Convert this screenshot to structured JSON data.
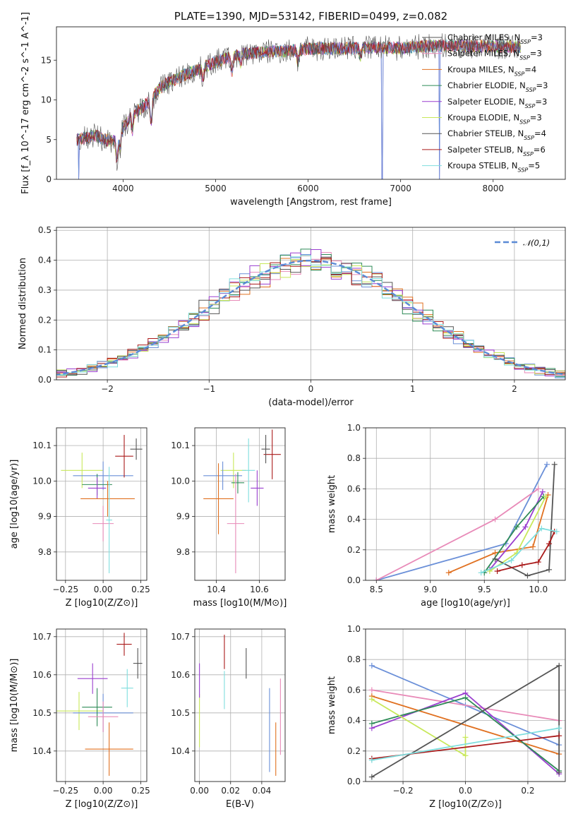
{
  "colors": [
    "#6a8fd8",
    "#e07020",
    "#2e8b57",
    "#9a3fcf",
    "#c8e85a",
    "#555555",
    "#aa1a1a",
    "#e88ab8",
    "#7fdede"
  ],
  "models": [
    {
      "name": "Chabrier MILES",
      "nssp": "3",
      "c": 5
    },
    {
      "name": "Salpeter MILES",
      "nssp": "3",
      "c": 7
    },
    {
      "name": "Kroupa MILES",
      "nssp": "4",
      "c": 1
    },
    {
      "name": "Chabrier ELODIE",
      "nssp": "3",
      "c": 2
    },
    {
      "name": "Salpeter ELODIE",
      "nssp": "3",
      "c": 3
    },
    {
      "name": "Kroupa ELODIE",
      "nssp": "3",
      "c": 4
    },
    {
      "name": "Chabrier STELIB",
      "nssp": "4",
      "c": 5
    },
    {
      "name": "Salpeter STELIB",
      "nssp": "6",
      "c": 6
    },
    {
      "name": "Kroupa STELIB",
      "nssp": "5",
      "c": 8
    }
  ],
  "chart_data": [
    {
      "id": "spectrum",
      "type": "line",
      "title": "PLATE=1390, MJD=53142, FIBERID=0499, z=0.082",
      "xlabel": "wavelength [Angstrom, rest frame]",
      "ylabel": "Flux [f_λ 10^-17 erg cm^-2 s^-1 A^-1]",
      "xlim": [
        3280,
        8780
      ],
      "ylim": [
        0,
        19.2
      ],
      "xticks": [
        4000,
        5000,
        6000,
        7000,
        8000
      ],
      "yticks": [
        0,
        5,
        10,
        15
      ],
      "continuum": [
        [
          3500,
          5.0
        ],
        [
          3700,
          5.5
        ],
        [
          3800,
          5.0
        ],
        [
          3900,
          4.8
        ],
        [
          4000,
          6.5
        ],
        [
          4100,
          8.2
        ],
        [
          4200,
          9.0
        ],
        [
          4300,
          10.0
        ],
        [
          4400,
          11.5
        ],
        [
          4500,
          12.3
        ],
        [
          4700,
          13.3
        ],
        [
          4900,
          14.3
        ],
        [
          5100,
          15.2
        ],
        [
          5300,
          15.8
        ],
        [
          5500,
          16.0
        ],
        [
          5800,
          16.2
        ],
        [
          6100,
          16.5
        ],
        [
          6400,
          16.5
        ],
        [
          6700,
          16.6
        ],
        [
          7000,
          16.5
        ],
        [
          7300,
          16.8
        ],
        [
          7600,
          16.8
        ],
        [
          8000,
          16.7
        ],
        [
          8300,
          16.7
        ]
      ],
      "features": [
        [
          3934,
          -3.0
        ],
        [
          3969,
          -2.0
        ],
        [
          4102,
          -2.0
        ],
        [
          4305,
          -3.0
        ],
        [
          4861,
          -1.5
        ],
        [
          5176,
          -2.0
        ],
        [
          5270,
          -1.0
        ],
        [
          5890,
          -1.5
        ],
        [
          6563,
          -1.0
        ]
      ],
      "drops": [
        [
          3520,
          0.0
        ],
        [
          6800,
          0.0
        ],
        [
          7420,
          0.0
        ]
      ]
    },
    {
      "id": "residual-histogram",
      "type": "line",
      "xlabel": "(data-model)/error",
      "ylabel": "Normed distribution",
      "xlim": [
        -2.5,
        2.5
      ],
      "ylim": [
        0,
        0.51
      ],
      "xticks": [
        -2,
        -1,
        0,
        1,
        2
      ],
      "yticks": [
        0.0,
        0.1,
        0.2,
        0.3,
        0.4,
        0.5
      ],
      "legend": "𝒩(0,1)",
      "legend_position": "top-right",
      "bin_width": 0.1
    },
    {
      "id": "age-vs-metallicity",
      "type": "scatter",
      "xlabel": "Z [log10(Z/Z⊙)]",
      "ylabel": "age  [log10(age/yr)]",
      "xlim": [
        -0.31,
        0.29
      ],
      "ylim": [
        9.72,
        10.15
      ],
      "xticks": [
        -0.25,
        0.0,
        0.25
      ],
      "yticks": [
        9.8,
        9.9,
        10.0,
        10.1
      ],
      "points": [
        {
          "c": 4,
          "x": -0.14,
          "xerr": 0.14,
          "y": 10.03,
          "yerr": 0.05
        },
        {
          "c": 0,
          "x": 0.0,
          "xerr": 0.2,
          "y": 10.015,
          "yerr": 0.04
        },
        {
          "c": 2,
          "x": -0.04,
          "xerr": 0.1,
          "y": 9.99,
          "yerr": 0.03
        },
        {
          "c": 3,
          "x": -0.04,
          "xerr": 0.06,
          "y": 9.98,
          "yerr": 0.03
        },
        {
          "c": 1,
          "x": 0.03,
          "xerr": 0.18,
          "y": 9.95,
          "yerr": 0.05
        },
        {
          "c": 7,
          "x": 0.0,
          "xerr": 0.07,
          "y": 9.88,
          "yerr": 0.05
        },
        {
          "c": 6,
          "x": 0.14,
          "xerr": 0.06,
          "y": 10.07,
          "yerr": 0.06
        },
        {
          "c": 5,
          "x": 0.22,
          "xerr": 0.04,
          "y": 10.09,
          "yerr": 0.03
        },
        {
          "c": 8,
          "x": 0.04,
          "xerr": 0.02,
          "y": 9.89,
          "yerr": 0.15
        }
      ]
    },
    {
      "id": "age-vs-mass",
      "type": "scatter",
      "xlabel": "mass [log10(M/M⊙)]",
      "ylabel": "",
      "xlim": [
        10.3,
        10.72
      ],
      "ylim": [
        9.72,
        10.15
      ],
      "xticks": [
        10.4,
        10.6
      ],
      "yticks": [
        9.8,
        9.9,
        10.0,
        10.1
      ],
      "points": [
        {
          "c": 4,
          "x": 10.48,
          "xerr": 0.06,
          "y": 10.03,
          "yerr": 0.05
        },
        {
          "c": 0,
          "x": 10.43,
          "xerr": 0.09,
          "y": 10.015,
          "yerr": 0.04
        },
        {
          "c": 2,
          "x": 10.5,
          "xerr": 0.03,
          "y": 9.995,
          "yerr": 0.03
        },
        {
          "c": 3,
          "x": 10.59,
          "xerr": 0.03,
          "y": 9.98,
          "yerr": 0.05
        },
        {
          "c": 1,
          "x": 10.41,
          "xerr": 0.07,
          "y": 9.95,
          "yerr": 0.1
        },
        {
          "c": 7,
          "x": 10.49,
          "xerr": 0.04,
          "y": 9.88,
          "yerr": 0.14
        },
        {
          "c": 6,
          "x": 10.66,
          "xerr": 0.04,
          "y": 10.075,
          "yerr": 0.07
        },
        {
          "c": 5,
          "x": 10.63,
          "xerr": 0.02,
          "y": 10.09,
          "yerr": 0.04
        },
        {
          "c": 8,
          "x": 10.55,
          "xerr": 0.03,
          "y": 10.03,
          "yerr": 0.09
        }
      ]
    },
    {
      "id": "mass-weight-vs-age",
      "type": "line",
      "xlabel": "age  [log10(age/yr)]",
      "ylabel": "mass weight",
      "xlim": [
        8.4,
        10.25
      ],
      "ylim": [
        0,
        1.0
      ],
      "xticks": [
        8.5,
        9.0,
        9.5,
        10.0
      ],
      "yticks": [
        0.0,
        0.2,
        0.4,
        0.6,
        0.8,
        1.0
      ],
      "series": [
        {
          "c": 0,
          "x": [
            8.5,
            9.7,
            10.08
          ],
          "y": [
            0.0,
            0.24,
            0.76
          ]
        },
        {
          "c": 7,
          "x": [
            8.5,
            9.6,
            10.0
          ],
          "y": [
            0.0,
            0.4,
            0.6
          ]
        },
        {
          "c": 1,
          "x": [
            9.17,
            9.6,
            9.95,
            10.09
          ],
          "y": [
            0.05,
            0.18,
            0.22,
            0.56
          ]
        },
        {
          "c": 3,
          "x": [
            9.55,
            9.88,
            10.04
          ],
          "y": [
            0.07,
            0.35,
            0.58
          ]
        },
        {
          "c": 2,
          "x": [
            9.5,
            9.8,
            10.05
          ],
          "y": [
            0.05,
            0.35,
            0.55
          ]
        },
        {
          "c": 4,
          "x": [
            9.55,
            9.8,
            10.07
          ],
          "y": [
            0.06,
            0.18,
            0.55
          ]
        },
        {
          "c": 5,
          "x": [
            9.6,
            9.9,
            10.1,
            10.15
          ],
          "y": [
            0.14,
            0.03,
            0.07,
            0.76
          ]
        },
        {
          "c": 6,
          "x": [
            9.62,
            9.85,
            10.0,
            10.1,
            10.15
          ],
          "y": [
            0.06,
            0.1,
            0.12,
            0.24,
            0.32
          ]
        },
        {
          "c": 8,
          "x": [
            9.47,
            9.75,
            10.03,
            10.17
          ],
          "y": [
            0.05,
            0.13,
            0.34,
            0.32
          ]
        }
      ]
    },
    {
      "id": "mass-vs-metallicity",
      "type": "scatter",
      "xlabel": "Z [log10(Z/Z⊙)]",
      "ylabel": "mass [log10(M/M⊙)]",
      "xlim": [
        -0.31,
        0.29
      ],
      "ylim": [
        10.32,
        10.72
      ],
      "xticks": [
        -0.25,
        0.0,
        0.25
      ],
      "yticks": [
        10.4,
        10.5,
        10.6,
        10.7
      ],
      "points": [
        {
          "c": 4,
          "x": -0.16,
          "xerr": 0.16,
          "y": 10.505,
          "yerr": 0.05
        },
        {
          "c": 0,
          "x": 0.0,
          "xerr": 0.2,
          "y": 10.5,
          "yerr": 0.05
        },
        {
          "c": 2,
          "x": -0.04,
          "xerr": 0.1,
          "y": 10.515,
          "yerr": 0.05
        },
        {
          "c": 3,
          "x": -0.07,
          "xerr": 0.1,
          "y": 10.59,
          "yerr": 0.04
        },
        {
          "c": 1,
          "x": 0.04,
          "xerr": 0.16,
          "y": 10.405,
          "yerr": 0.07
        },
        {
          "c": 7,
          "x": 0.0,
          "xerr": 0.1,
          "y": 10.49,
          "yerr": 0.04
        },
        {
          "c": 6,
          "x": 0.14,
          "xerr": 0.05,
          "y": 10.68,
          "yerr": 0.03
        },
        {
          "c": 5,
          "x": 0.23,
          "xerr": 0.03,
          "y": 10.63,
          "yerr": 0.04
        },
        {
          "c": 8,
          "x": 0.16,
          "xerr": 0.04,
          "y": 10.565,
          "yerr": 0.05
        }
      ]
    },
    {
      "id": "mass-vs-ebv",
      "type": "scatter",
      "xlabel": "E(B-V)",
      "ylabel": "",
      "xlim": [
        -0.003,
        0.055
      ],
      "ylim": [
        10.32,
        10.72
      ],
      "xticks": [
        0.0,
        0.02,
        0.04
      ],
      "yticks": [
        10.4,
        10.5,
        10.6,
        10.7
      ],
      "points": [
        {
          "c": 4,
          "x": 0.0,
          "y": 10.48,
          "yerr": 0.07
        },
        {
          "c": 3,
          "x": 0.0,
          "y": 10.585,
          "yerr": 0.045
        },
        {
          "c": 8,
          "x": 0.016,
          "y": 10.56,
          "yerr": 0.05
        },
        {
          "c": 6,
          "x": 0.016,
          "y": 10.66,
          "yerr": 0.045
        },
        {
          "c": 5,
          "x": 0.03,
          "y": 10.63,
          "yerr": 0.04
        },
        {
          "c": 0,
          "x": 0.045,
          "y": 10.455,
          "yerr": 0.11
        },
        {
          "c": 1,
          "x": 0.049,
          "y": 10.405,
          "yerr": 0.07
        },
        {
          "c": 7,
          "x": 0.052,
          "y": 10.49,
          "yerr": 0.1
        }
      ]
    },
    {
      "id": "mass-weight-vs-metallicity",
      "type": "line",
      "xlabel": "Z [log10(Z/Z⊙)]",
      "ylabel": "mass weight",
      "xlim": [
        -0.32,
        0.32
      ],
      "ylim": [
        0,
        1.0
      ],
      "xticks": [
        -0.2,
        0.0,
        0.2
      ],
      "yticks": [
        0.0,
        0.2,
        0.4,
        0.6,
        0.8,
        1.0
      ],
      "series": [
        {
          "c": 0,
          "x": [
            -0.3,
            0.0,
            0.3
          ],
          "y": [
            0.76,
            0.5,
            0.24
          ]
        },
        {
          "c": 7,
          "x": [
            -0.3,
            0.3
          ],
          "y": [
            0.6,
            0.4
          ]
        },
        {
          "c": 1,
          "x": [
            -0.3,
            0.3
          ],
          "y": [
            0.56,
            0.18
          ]
        },
        {
          "c": 3,
          "x": [
            -0.3,
            0.0,
            0.3
          ],
          "y": [
            0.35,
            0.58,
            0.05
          ]
        },
        {
          "c": 2,
          "x": [
            -0.3,
            0.0,
            0.3
          ],
          "y": [
            0.38,
            0.55,
            0.07
          ]
        },
        {
          "c": 4,
          "x": [
            -0.3,
            0.0,
            0.0
          ],
          "y": [
            0.54,
            0.17,
            0.29
          ]
        },
        {
          "c": 5,
          "x": [
            -0.3,
            0.3,
            0.3
          ],
          "y": [
            0.03,
            0.76,
            0.06
          ]
        },
        {
          "c": 6,
          "x": [
            -0.3,
            0.3
          ],
          "y": [
            0.15,
            0.3
          ]
        },
        {
          "c": 8,
          "x": [
            -0.3,
            0.3
          ],
          "y": [
            0.14,
            0.35
          ]
        }
      ]
    }
  ]
}
